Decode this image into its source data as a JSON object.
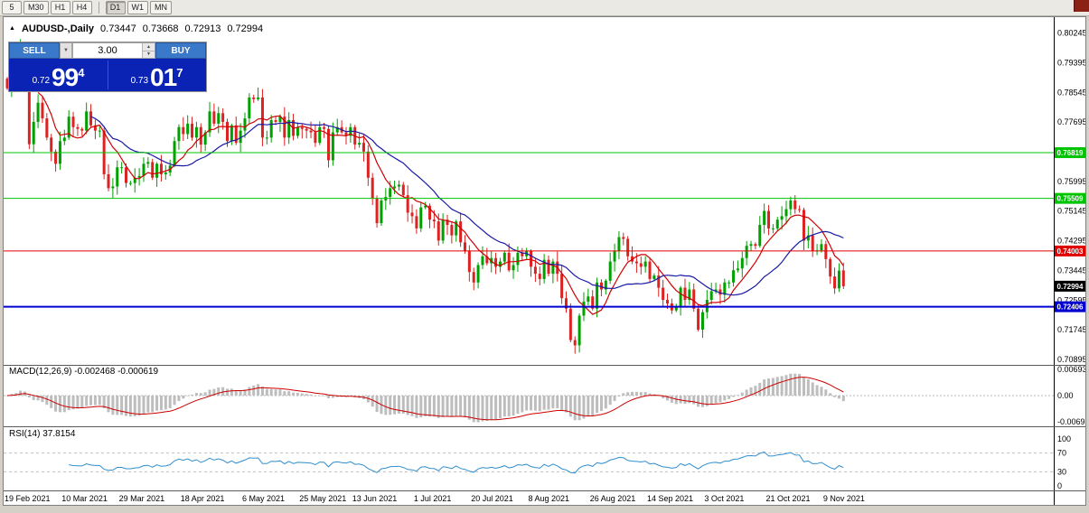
{
  "toolbar": {
    "timeframe_buttons": [
      "5",
      "M30",
      "H1",
      "H4",
      "D1",
      "W1",
      "MN"
    ],
    "active": "D1"
  },
  "chart_header": {
    "collapse_icon": "▲",
    "symbol": "AUDUSD-,Daily",
    "open": "0.73447",
    "high": "0.73668",
    "low": "0.72913",
    "close": "0.72994"
  },
  "trade_panel": {
    "sell_label": "SELL",
    "buy_label": "BUY",
    "volume": "3.00",
    "sell_price": {
      "prefix": "0.72",
      "big": "99",
      "sup": "4"
    },
    "buy_price": {
      "prefix": "0.73",
      "big": "01",
      "sup": "7"
    }
  },
  "price_axis": {
    "ticks": [
      "0.80245",
      "0.79395",
      "0.78545",
      "0.77695",
      "0.76845",
      "0.75995",
      "0.75145",
      "0.74295",
      "0.73445",
      "0.72595",
      "0.71745",
      "0.70895"
    ]
  },
  "hlines": [
    {
      "price": 0.76819,
      "label": "0.76819",
      "color": "#00C400",
      "width": 1
    },
    {
      "price": 0.75509,
      "label": "0.75509",
      "color": "#00C400",
      "width": 1
    },
    {
      "price": 0.74003,
      "label": "0.74003",
      "color": "#E00000",
      "width": 1
    },
    {
      "price": 0.72406,
      "label": "0.72406",
      "color": "#0000D0",
      "width": 2
    }
  ],
  "bid": {
    "price": 0.72994,
    "label": "0.72994",
    "color": "#000000"
  },
  "indicators": {
    "macd": {
      "name": "MACD(12,26,9)",
      "values": "-0.002468 -0.000619",
      "ticks": [
        {
          "text": "0.006936",
          "v": 0.006936
        },
        {
          "text": "0.00",
          "v": 0
        },
        {
          "text": "-0.006936",
          "v": -0.006936
        }
      ]
    },
    "rsi": {
      "name": "RSI(14)",
      "value": "37.8154",
      "ticks": [
        {
          "text": "100",
          "v": 100
        },
        {
          "text": "70",
          "v": 70
        },
        {
          "text": "30",
          "v": 30
        },
        {
          "text": "0",
          "v": 0
        }
      ],
      "levels": [
        70,
        30
      ]
    }
  },
  "x_axis": {
    "labels": [
      {
        "text": "19 Feb 2021",
        "i": 0
      },
      {
        "text": "10 Mar 2021",
        "i": 13
      },
      {
        "text": "29 Mar 2021",
        "i": 26
      },
      {
        "text": "18 Apr 2021",
        "i": 40
      },
      {
        "text": "6 May 2021",
        "i": 54
      },
      {
        "text": "25 May 2021",
        "i": 67
      },
      {
        "text": "13 Jun 2021",
        "i": 79
      },
      {
        "text": "1 Jul 2021",
        "i": 93
      },
      {
        "text": "20 Jul 2021",
        "i": 106
      },
      {
        "text": "8 Aug 2021",
        "i": 119
      },
      {
        "text": "26 Aug 2021",
        "i": 133
      },
      {
        "text": "14 Sep 2021",
        "i": 146
      },
      {
        "text": "3 Oct 2021",
        "i": 159
      },
      {
        "text": "21 Oct 2021",
        "i": 173
      },
      {
        "text": "9 Nov 2021",
        "i": 186
      }
    ]
  },
  "chart_data": {
    "type": "candlestick",
    "symbol": "AUDUSD",
    "timeframe": "Daily",
    "title": "AUDUSD-,Daily",
    "y_range_visible": [
      0.7074,
      0.807
    ],
    "last_ohlc": {
      "open": 0.73447,
      "high": 0.73668,
      "low": 0.72913,
      "close": 0.72994
    },
    "horizontal_levels": [
      0.76819,
      0.75509,
      0.74003,
      0.72406
    ],
    "closes": [
      0.7866,
      0.7917,
      0.791,
      0.7965,
      0.7875,
      0.7706,
      0.777,
      0.7825,
      0.778,
      0.7725,
      0.7685,
      0.765,
      0.7715,
      0.7725,
      0.7785,
      0.7755,
      0.775,
      0.7745,
      0.78,
      0.776,
      0.7745,
      0.7745,
      0.762,
      0.758,
      0.7585,
      0.764,
      0.764,
      0.7595,
      0.7595,
      0.761,
      0.7615,
      0.765,
      0.7655,
      0.761,
      0.765,
      0.762,
      0.7625,
      0.7645,
      0.7715,
      0.7755,
      0.7735,
      0.7765,
      0.7725,
      0.7755,
      0.7705,
      0.774,
      0.78,
      0.7765,
      0.7795,
      0.777,
      0.7715,
      0.776,
      0.771,
      0.7745,
      0.778,
      0.784,
      0.7835,
      0.784,
      0.7725,
      0.7725,
      0.7775,
      0.777,
      0.7785,
      0.7725,
      0.7775,
      0.773,
      0.7755,
      0.775,
      0.7745,
      0.774,
      0.771,
      0.7755,
      0.775,
      0.766,
      0.774,
      0.7755,
      0.774,
      0.773,
      0.7755,
      0.7705,
      0.771,
      0.7685,
      0.761,
      0.755,
      0.748,
      0.7545,
      0.7555,
      0.758,
      0.7585,
      0.759,
      0.756,
      0.751,
      0.75,
      0.7465,
      0.7525,
      0.753,
      0.749,
      0.7485,
      0.743,
      0.749,
      0.7475,
      0.7445,
      0.7485,
      0.7425,
      0.74,
      0.734,
      0.731,
      0.736,
      0.7385,
      0.7365,
      0.738,
      0.7355,
      0.737,
      0.7395,
      0.7345,
      0.736,
      0.7395,
      0.7385,
      0.74,
      0.7355,
      0.7335,
      0.732,
      0.7375,
      0.7335,
      0.737,
      0.7335,
      0.7265,
      0.7235,
      0.7145,
      0.713,
      0.7215,
      0.7255,
      0.727,
      0.7235,
      0.731,
      0.729,
      0.7315,
      0.737,
      0.74,
      0.744,
      0.7435,
      0.7385,
      0.737,
      0.7365,
      0.7355,
      0.737,
      0.732,
      0.733,
      0.7295,
      0.726,
      0.725,
      0.723,
      0.724,
      0.7295,
      0.726,
      0.729,
      0.7235,
      0.7175,
      0.7225,
      0.726,
      0.7285,
      0.729,
      0.7275,
      0.731,
      0.731,
      0.7345,
      0.735,
      0.738,
      0.7415,
      0.742,
      0.7415,
      0.7475,
      0.7515,
      0.7465,
      0.7465,
      0.749,
      0.75,
      0.752,
      0.7545,
      0.752,
      0.7518,
      0.743,
      0.7445,
      0.74,
      0.7402,
      0.742,
      0.7377,
      0.7327,
      0.7293,
      0.7344,
      0.72994
    ],
    "wick_overrides": [
      {
        "i": 3,
        "h": 0.8007
      },
      {
        "i": 5,
        "l": 0.7692
      },
      {
        "i": 129,
        "l": 0.7106
      },
      {
        "i": 157,
        "l": 0.717
      },
      {
        "i": 178,
        "h": 0.7556
      },
      {
        "i": 190,
        "o": 0.73447,
        "h": 0.73668,
        "l": 0.72913
      }
    ],
    "moving_averages": [
      {
        "period": 8,
        "color": "#D00000"
      },
      {
        "period": 20,
        "color": "#1A1AA6"
      }
    ],
    "macd_params": [
      12,
      26,
      9
    ],
    "rsi_period": 14
  },
  "colors": {
    "up": "#00A000",
    "down": "#DD2222",
    "macd_hist": "#BDBDBD",
    "macd_signal": "#CC0000",
    "rsi_line": "#2F8ECE",
    "axis_text": "#000000"
  }
}
